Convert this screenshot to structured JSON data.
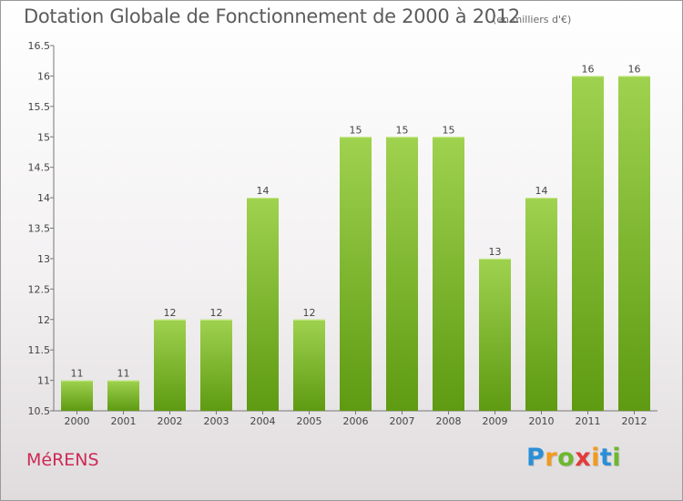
{
  "chart_data": {
    "type": "bar",
    "title": "Dotation Globale de Fonctionnement de 2000 à 2012",
    "subtitle": "(en milliers d'€)",
    "categories": [
      "2000",
      "2001",
      "2002",
      "2003",
      "2004",
      "2005",
      "2006",
      "2007",
      "2008",
      "2009",
      "2010",
      "2011",
      "2012"
    ],
    "values": [
      11,
      11,
      12,
      12,
      14,
      12,
      15,
      15,
      15,
      13,
      14,
      16,
      16
    ],
    "value_labels": [
      "11",
      "11",
      "12",
      "12",
      "14",
      "12",
      "15",
      "15",
      "15",
      "13",
      "14",
      "16",
      "16"
    ],
    "ylim": [
      10.5,
      16.5
    ],
    "yticks": [
      10.5,
      11,
      11.5,
      12,
      12.5,
      13,
      13.5,
      14,
      14.5,
      15,
      15.5,
      16,
      16.5
    ],
    "ytick_labels": [
      "10.5",
      "11",
      "11.5",
      "12",
      "12.5",
      "13",
      "13.5",
      "14",
      "14.5",
      "15",
      "15.5",
      "16",
      "16.5"
    ],
    "grid": false,
    "bar_color_top": "#9fd24f",
    "bar_color_bottom": "#5e9a12"
  },
  "place_name": "MéRENS",
  "logo": {
    "text": "Proxiti",
    "letters": [
      "P",
      "r",
      "o",
      "x",
      "i",
      "t",
      "i"
    ],
    "colors": [
      "#2a8fd6",
      "#f39a1d",
      "#6cb82e",
      "#e23b3b",
      "#f39a1d",
      "#2a8fd6",
      "#6cb82e"
    ]
  }
}
